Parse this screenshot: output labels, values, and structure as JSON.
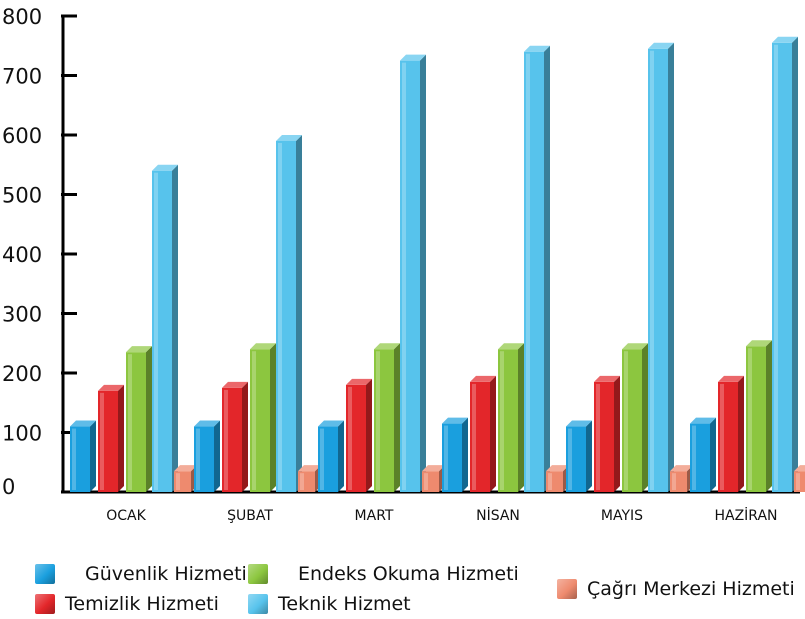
{
  "chart_data": {
    "type": "bar",
    "categories": [
      "OCAK",
      "ŞUBAT",
      "MART",
      "NİSAN",
      "MAYIS",
      "HAZİRAN"
    ],
    "series": [
      {
        "name": "Güvenlik Hizmeti",
        "color": "#1a9fde",
        "values": [
          110,
          110,
          110,
          115,
          110,
          115
        ]
      },
      {
        "name": "Temizlik Hizmeti",
        "color": "#e3262a",
        "values": [
          170,
          175,
          180,
          185,
          185,
          185
        ]
      },
      {
        "name": "Endeks Okuma Hizmeti",
        "color": "#8cc63f",
        "values": [
          235,
          240,
          240,
          240,
          240,
          245
        ]
      },
      {
        "name": "Teknik Hizmet",
        "color": "#57c3ec",
        "values": [
          540,
          590,
          725,
          740,
          745,
          755
        ]
      },
      {
        "name": "Çağrı Merkezi Hizmeti",
        "color": "#ee8a6e",
        "values": [
          35,
          35,
          35,
          35,
          35,
          35
        ]
      }
    ],
    "ylim": [
      0,
      800
    ],
    "yticks": [
      0,
      100,
      200,
      300,
      400,
      500,
      600,
      700,
      800
    ],
    "legend_position": "bottom"
  }
}
